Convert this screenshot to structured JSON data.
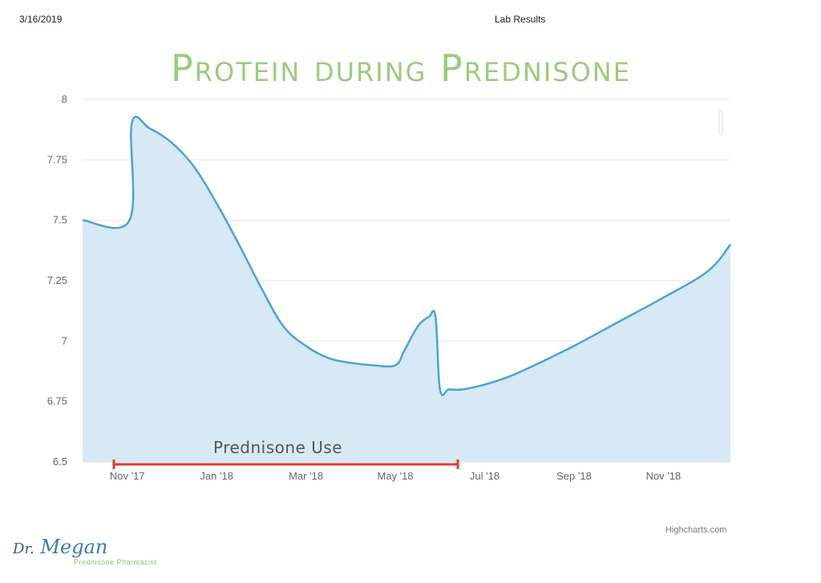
{
  "header": {
    "date": "3/16/2019",
    "title": "Lab Results"
  },
  "chart_data": {
    "type": "area",
    "title": "Protein during Prednisone",
    "xlabel": "",
    "ylabel": "",
    "x_tick_labels": [
      "Nov '17",
      "Jan '18",
      "Mar '18",
      "May '18",
      "Jul '18",
      "Sep '18",
      "Nov '18"
    ],
    "y_tick_labels": [
      "8",
      "7.75",
      "7.5",
      "7.25",
      "7",
      "6.75",
      "6.5"
    ],
    "ylim": [
      6.5,
      8
    ],
    "xlim": [
      -1.0,
      13.5
    ],
    "grid": true,
    "series": [
      {
        "name": "Protein",
        "color": "#4aa3d6",
        "fill": "#d6e9f5",
        "x": [
          -1.0,
          0.05,
          0.1,
          0.5,
          1.0,
          1.5,
          2.0,
          2.5,
          3.0,
          3.5,
          4.0,
          4.5,
          5.0,
          5.5,
          6.0,
          6.2,
          6.5,
          6.75,
          6.9,
          7.0,
          7.2,
          7.5,
          8.0,
          8.5,
          9.0,
          10.0,
          11.0,
          12.0,
          13.0,
          13.5
        ],
        "values": [
          7.5,
          7.5,
          7.9,
          7.88,
          7.82,
          7.72,
          7.57,
          7.4,
          7.22,
          7.06,
          6.98,
          6.93,
          6.91,
          6.9,
          6.9,
          6.96,
          7.06,
          7.1,
          7.1,
          6.8,
          6.8,
          6.8,
          6.82,
          6.85,
          6.89,
          6.98,
          7.08,
          7.18,
          7.29,
          7.4
        ]
      }
    ],
    "annotation": {
      "label": "Prednisone Use",
      "x_start": -0.3,
      "x_end": 7.4,
      "color": "#e53935"
    },
    "credits": "Highcharts.com"
  },
  "logo": {
    "dr": "Dr.",
    "name": "Megan",
    "tagline": "Prednisone Pharmacist"
  }
}
